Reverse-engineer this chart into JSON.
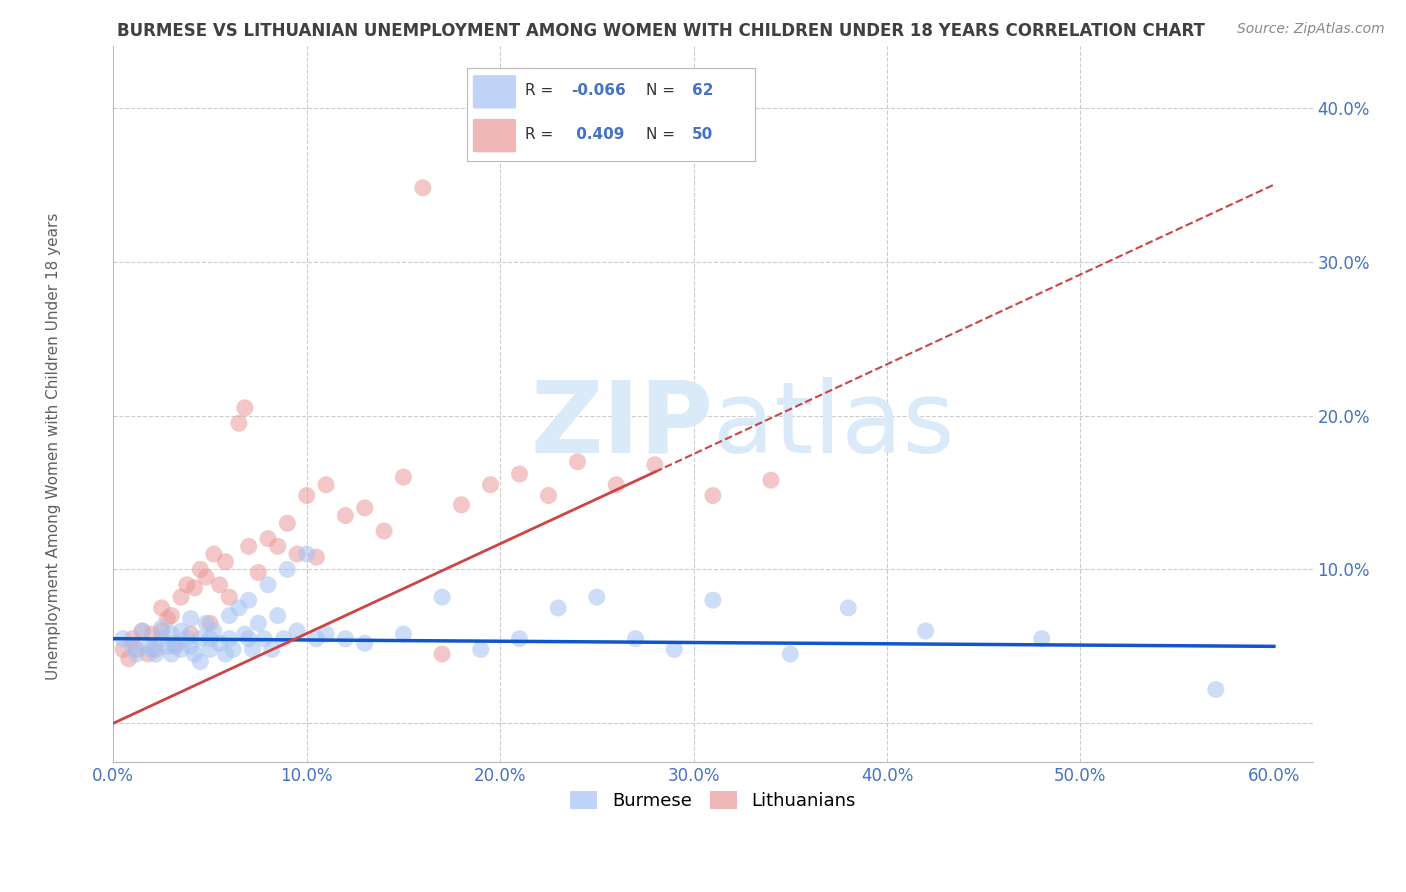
{
  "title": "BURMESE VS LITHUANIAN UNEMPLOYMENT AMONG WOMEN WITH CHILDREN UNDER 18 YEARS CORRELATION CHART",
  "source": "Source: ZipAtlas.com",
  "ylabel": "Unemployment Among Women with Children Under 18 years",
  "xlim": [
    0.0,
    0.62
  ],
  "ylim": [
    -0.025,
    0.44
  ],
  "xticks": [
    0.0,
    0.1,
    0.2,
    0.3,
    0.4,
    0.5,
    0.6
  ],
  "yticks": [
    0.0,
    0.1,
    0.2,
    0.3,
    0.4
  ],
  "ytick_labels": [
    "",
    "10.0%",
    "20.0%",
    "30.0%",
    "40.0%"
  ],
  "xtick_labels": [
    "0.0%",
    "",
    "",
    "",
    "",
    "",
    "60.0%"
  ],
  "blue_R": "-0.066",
  "blue_N": "62",
  "pink_R": "0.409",
  "pink_N": "50",
  "blue_color": "#a4c2f4",
  "pink_color": "#ea9999",
  "blue_line_color": "#1155cc",
  "pink_line_color": "#cc4444",
  "grid_color": "#cccccc",
  "watermark_color": "#daeaf8",
  "title_color": "#404040",
  "axis_label_color": "#606060",
  "tick_label_color": "#4472c4",
  "blue_trend_x0": 0.0,
  "blue_trend_y0": 0.055,
  "blue_trend_x1": 0.6,
  "blue_trend_y1": 0.05,
  "pink_trend_x0": 0.0,
  "pink_trend_y0": 0.0,
  "pink_trend_x1": 0.6,
  "pink_trend_y1": 0.35,
  "blue_scatter_x": [
    0.005,
    0.01,
    0.012,
    0.015,
    0.018,
    0.02,
    0.022,
    0.025,
    0.025,
    0.028,
    0.03,
    0.03,
    0.032,
    0.035,
    0.035,
    0.038,
    0.04,
    0.04,
    0.042,
    0.045,
    0.045,
    0.048,
    0.05,
    0.05,
    0.052,
    0.055,
    0.058,
    0.06,
    0.06,
    0.062,
    0.065,
    0.068,
    0.07,
    0.07,
    0.072,
    0.075,
    0.078,
    0.08,
    0.082,
    0.085,
    0.088,
    0.09,
    0.095,
    0.1,
    0.105,
    0.11,
    0.12,
    0.13,
    0.15,
    0.17,
    0.19,
    0.21,
    0.23,
    0.25,
    0.27,
    0.29,
    0.31,
    0.35,
    0.38,
    0.42,
    0.48,
    0.57
  ],
  "blue_scatter_y": [
    0.055,
    0.05,
    0.045,
    0.06,
    0.05,
    0.048,
    0.045,
    0.055,
    0.062,
    0.05,
    0.058,
    0.045,
    0.052,
    0.06,
    0.048,
    0.055,
    0.05,
    0.068,
    0.045,
    0.055,
    0.04,
    0.065,
    0.055,
    0.048,
    0.06,
    0.052,
    0.045,
    0.07,
    0.055,
    0.048,
    0.075,
    0.058,
    0.055,
    0.08,
    0.048,
    0.065,
    0.055,
    0.09,
    0.048,
    0.07,
    0.055,
    0.1,
    0.06,
    0.11,
    0.055,
    0.058,
    0.055,
    0.052,
    0.058,
    0.082,
    0.048,
    0.055,
    0.075,
    0.082,
    0.055,
    0.048,
    0.08,
    0.045,
    0.075,
    0.06,
    0.055,
    0.022
  ],
  "pink_scatter_x": [
    0.005,
    0.008,
    0.01,
    0.012,
    0.015,
    0.018,
    0.02,
    0.022,
    0.025,
    0.025,
    0.028,
    0.03,
    0.032,
    0.035,
    0.038,
    0.04,
    0.042,
    0.045,
    0.048,
    0.05,
    0.052,
    0.055,
    0.058,
    0.06,
    0.065,
    0.068,
    0.07,
    0.075,
    0.08,
    0.085,
    0.09,
    0.095,
    0.1,
    0.105,
    0.11,
    0.12,
    0.13,
    0.14,
    0.15,
    0.16,
    0.17,
    0.18,
    0.195,
    0.21,
    0.225,
    0.24,
    0.26,
    0.28,
    0.31,
    0.34
  ],
  "pink_scatter_y": [
    0.048,
    0.042,
    0.055,
    0.048,
    0.06,
    0.045,
    0.058,
    0.048,
    0.06,
    0.075,
    0.068,
    0.07,
    0.05,
    0.082,
    0.09,
    0.058,
    0.088,
    0.1,
    0.095,
    0.065,
    0.11,
    0.09,
    0.105,
    0.082,
    0.195,
    0.205,
    0.115,
    0.098,
    0.12,
    0.115,
    0.13,
    0.11,
    0.148,
    0.108,
    0.155,
    0.135,
    0.14,
    0.125,
    0.16,
    0.348,
    0.045,
    0.142,
    0.155,
    0.162,
    0.148,
    0.17,
    0.155,
    0.168,
    0.148,
    0.158
  ]
}
